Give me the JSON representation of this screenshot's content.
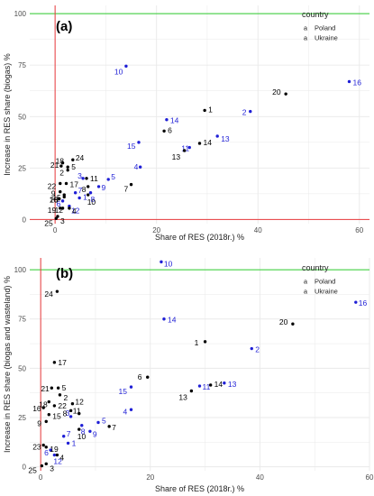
{
  "colors": {
    "poland": "#1f1fd6",
    "ukraine": "#000000",
    "green_line": "#2ecc2e",
    "red_line": "#e8393b",
    "grid": "#e9e9e9"
  },
  "legend": {
    "title": "country",
    "items": [
      {
        "label": "Poland",
        "color": "#1f1fd6",
        "marker": "a"
      },
      {
        "label": "Ukraine",
        "color": "#000000",
        "marker": "a"
      }
    ]
  },
  "chart_data": [
    {
      "type": "scatter",
      "panel_label": "(a)",
      "xlabel": "Share of RES (2018r.) %",
      "ylabel": "Increase in RES share (biogas) %",
      "xlim": [
        -5,
        62
      ],
      "ylim": [
        -2,
        104
      ],
      "xticks": [
        0,
        20,
        40,
        60
      ],
      "yticks": [
        0,
        25,
        50,
        75,
        100
      ],
      "hlines": [
        {
          "y": 100,
          "color": "green"
        },
        {
          "y": 0,
          "color": "red"
        }
      ],
      "vlines": [
        {
          "x": 0,
          "color": "red"
        }
      ],
      "grid": true,
      "legend_position": "top-right",
      "series": [
        {
          "name": "Poland",
          "points": [
            {
              "id": "1",
              "x": 4.8,
              "y": 10.5
            },
            {
              "id": "2",
              "x": 38.5,
              "y": 52.5
            },
            {
              "id": "3",
              "x": 5.5,
              "y": 20.0
            },
            {
              "id": "4",
              "x": 16.8,
              "y": 25.5
            },
            {
              "id": "5",
              "x": 10.5,
              "y": 19.5
            },
            {
              "id": "6",
              "x": 1.5,
              "y": 9.0
            },
            {
              "id": "7",
              "x": 4.0,
              "y": 13.0
            },
            {
              "id": "8",
              "x": 7.0,
              "y": 13.0
            },
            {
              "id": "9",
              "x": 8.6,
              "y": 16.0
            },
            {
              "id": "10",
              "x": 14.0,
              "y": 74.5
            },
            {
              "id": "11",
              "x": 26.5,
              "y": 35.0
            },
            {
              "id": "12",
              "x": 2.8,
              "y": 6.5
            },
            {
              "id": "13",
              "x": 32.0,
              "y": 40.5
            },
            {
              "id": "14",
              "x": 22.0,
              "y": 48.5
            },
            {
              "id": "15",
              "x": 16.5,
              "y": 37.5
            },
            {
              "id": "16",
              "x": 58.0,
              "y": 67.0
            }
          ]
        },
        {
          "name": "Ukraine",
          "points": [
            {
              "id": "1",
              "x": 29.5,
              "y": 53.0
            },
            {
              "id": "2",
              "x": 2.5,
              "y": 24.0
            },
            {
              "id": "3",
              "x": 0.5,
              "y": 1.5
            },
            {
              "id": "4",
              "x": 2.8,
              "y": 5.5
            },
            {
              "id": "5",
              "x": 2.5,
              "y": 25.5
            },
            {
              "id": "6",
              "x": 21.5,
              "y": 43.0
            },
            {
              "id": "7",
              "x": 15.0,
              "y": 17.0
            },
            {
              "id": "8",
              "x": 6.5,
              "y": 16.0
            },
            {
              "id": "9",
              "x": 1.0,
              "y": 13.5
            },
            {
              "id": "10",
              "x": 6.5,
              "y": 12.0
            },
            {
              "id": "11",
              "x": 6.2,
              "y": 20.0
            },
            {
              "id": "12",
              "x": 1.5,
              "y": 5.5
            },
            {
              "id": "13",
              "x": 25.5,
              "y": 33.5
            },
            {
              "id": "14",
              "x": 28.5,
              "y": 37.0
            },
            {
              "id": "15",
              "x": 1.8,
              "y": 12.0
            },
            {
              "id": "16",
              "x": 0.8,
              "y": 10.0
            },
            {
              "id": "17",
              "x": 2.2,
              "y": 17.5
            },
            {
              "id": "18",
              "x": 1.5,
              "y": 27.5
            },
            {
              "id": "19",
              "x": 1.0,
              "y": 5.5
            },
            {
              "id": "20",
              "x": 45.5,
              "y": 61.0
            },
            {
              "id": "21",
              "x": 1.2,
              "y": 26.0
            },
            {
              "id": "22",
              "x": 1.0,
              "y": 17.5
            },
            {
              "id": "23",
              "x": 1.8,
              "y": 11.0
            },
            {
              "id": "24",
              "x": 3.5,
              "y": 29.0
            },
            {
              "id": "25",
              "x": 0.2,
              "y": 0.5
            }
          ]
        }
      ]
    },
    {
      "type": "scatter",
      "panel_label": "(b)",
      "xlabel": "Share of RES (2018r.) %",
      "ylabel": "Increase in RES share (biogas and wasteland) %",
      "xlim": [
        -2,
        60
      ],
      "ylim": [
        -2,
        106
      ],
      "xticks": [
        0,
        20,
        40,
        60
      ],
      "yticks": [
        0,
        25,
        50,
        75,
        100
      ],
      "hlines": [
        {
          "y": 100,
          "color": "green"
        }
      ],
      "vlines": [
        {
          "x": 0,
          "color": "red"
        }
      ],
      "grid": true,
      "legend_position": "top-right",
      "series": [
        {
          "name": "Poland",
          "points": [
            {
              "id": "1",
              "x": 5.0,
              "y": 12.0
            },
            {
              "id": "2",
              "x": 38.5,
              "y": 60.0
            },
            {
              "id": "3",
              "x": 5.5,
              "y": 25.5
            },
            {
              "id": "4",
              "x": 16.5,
              "y": 29.0
            },
            {
              "id": "5",
              "x": 10.5,
              "y": 22.5
            },
            {
              "id": "6",
              "x": 1.8,
              "y": 8.5
            },
            {
              "id": "7",
              "x": 4.2,
              "y": 15.5
            },
            {
              "id": "8",
              "x": 7.5,
              "y": 21.0
            },
            {
              "id": "9",
              "x": 9.0,
              "y": 18.0
            },
            {
              "id": "10",
              "x": 22.0,
              "y": 104.0
            },
            {
              "id": "11",
              "x": 29.0,
              "y": 41.0
            },
            {
              "id": "12",
              "x": 2.5,
              "y": 6.0
            },
            {
              "id": "13",
              "x": 33.5,
              "y": 42.5
            },
            {
              "id": "14",
              "x": 22.5,
              "y": 75.0
            },
            {
              "id": "15",
              "x": 16.5,
              "y": 40.5
            },
            {
              "id": "16",
              "x": 57.5,
              "y": 83.5
            }
          ]
        },
        {
          "name": "Ukraine",
          "points": [
            {
              "id": "1",
              "x": 30.0,
              "y": 63.5
            },
            {
              "id": "2",
              "x": 3.5,
              "y": 36.5
            },
            {
              "id": "3",
              "x": 1.0,
              "y": 1.5
            },
            {
              "id": "4",
              "x": 3.0,
              "y": 6.0
            },
            {
              "id": "5",
              "x": 3.2,
              "y": 40.0
            },
            {
              "id": "6",
              "x": 19.5,
              "y": 45.5
            },
            {
              "id": "7",
              "x": 12.5,
              "y": 20.5
            },
            {
              "id": "8",
              "x": 5.5,
              "y": 28.5
            },
            {
              "id": "9",
              "x": 1.0,
              "y": 23.0
            },
            {
              "id": "10",
              "x": 7.0,
              "y": 19.0
            },
            {
              "id": "11",
              "x": 7.0,
              "y": 27.0
            },
            {
              "id": "12",
              "x": 5.8,
              "y": 32.0
            },
            {
              "id": "13",
              "x": 27.5,
              "y": 38.5
            },
            {
              "id": "14",
              "x": 31.0,
              "y": 41.5
            },
            {
              "id": "15",
              "x": 1.5,
              "y": 26.5
            },
            {
              "id": "16",
              "x": 0.5,
              "y": 30.0
            },
            {
              "id": "17",
              "x": 2.5,
              "y": 53.0
            },
            {
              "id": "18",
              "x": 1.5,
              "y": 33.0
            },
            {
              "id": "19",
              "x": 1.0,
              "y": 10.0
            },
            {
              "id": "20",
              "x": 46.0,
              "y": 72.5
            },
            {
              "id": "21",
              "x": 2.0,
              "y": 40.0
            },
            {
              "id": "22",
              "x": 2.5,
              "y": 31.0
            },
            {
              "id": "23",
              "x": 0.5,
              "y": 11.0
            },
            {
              "id": "24",
              "x": 3.0,
              "y": 89.0
            },
            {
              "id": "25",
              "x": 0.2,
              "y": 0.5
            }
          ]
        }
      ]
    }
  ]
}
